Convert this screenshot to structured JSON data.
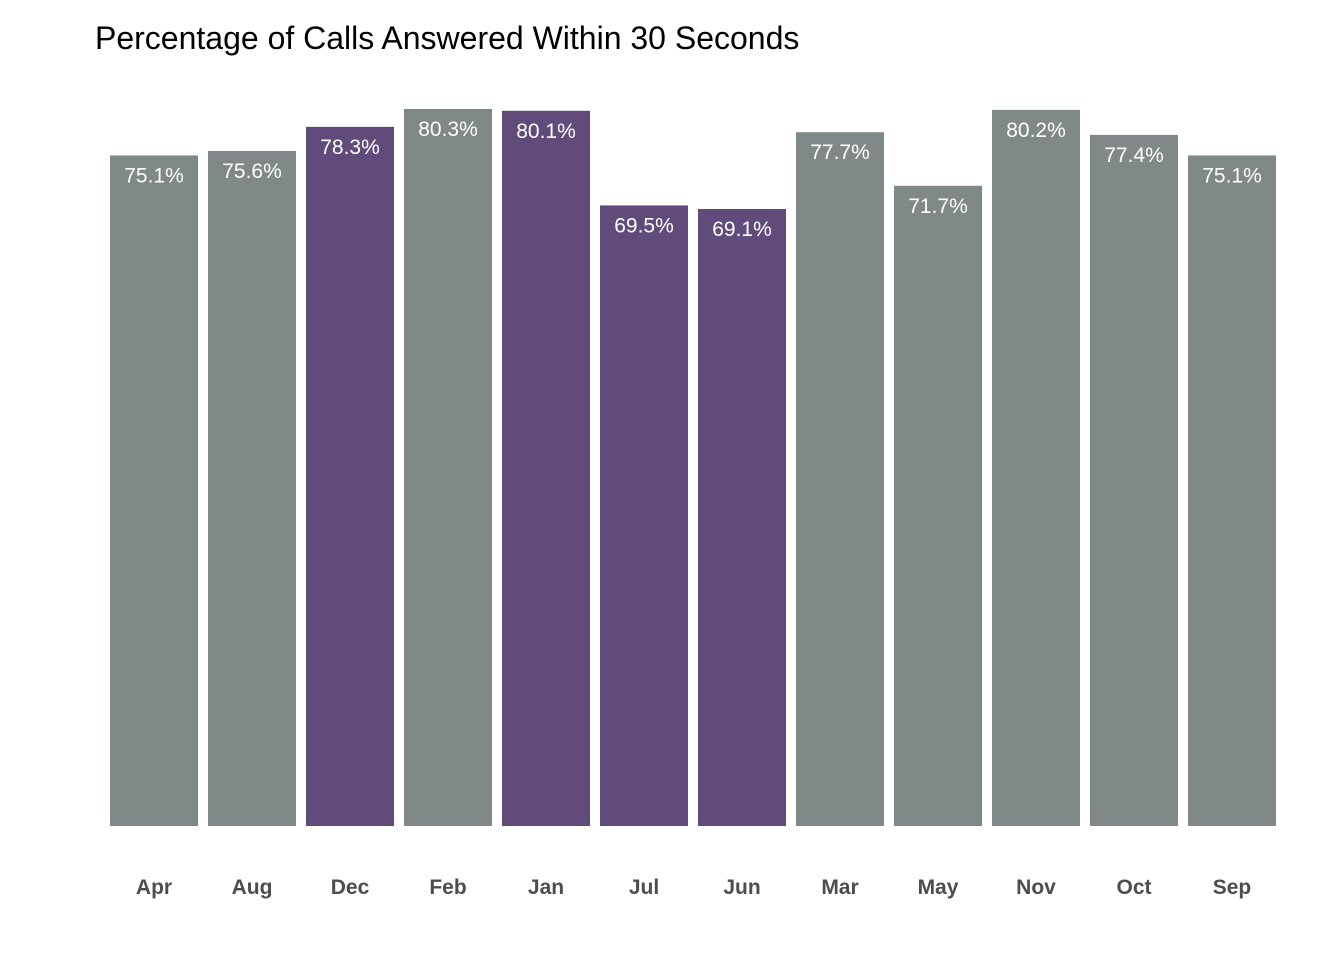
{
  "chart_data": {
    "type": "bar",
    "title": "Percentage of Calls Answered Within 30 Seconds",
    "xlabel": "",
    "ylabel": "",
    "ylim": [
      0,
      80.3
    ],
    "grid": false,
    "legend": "none",
    "categories": [
      "Apr",
      "Aug",
      "Dec",
      "Feb",
      "Jan",
      "Jul",
      "Jun",
      "Mar",
      "May",
      "Nov",
      "Oct",
      "Sep"
    ],
    "values": [
      75.1,
      75.6,
      78.3,
      80.3,
      80.1,
      69.5,
      69.1,
      77.7,
      71.7,
      80.2,
      77.4,
      75.1
    ],
    "labels": [
      "75.1%",
      "75.6%",
      "78.3%",
      "80.3%",
      "80.1%",
      "69.5%",
      "69.1%",
      "77.7%",
      "71.7%",
      "80.2%",
      "77.4%",
      "75.1%"
    ],
    "highlighted": [
      false,
      false,
      true,
      false,
      true,
      true,
      true,
      false,
      false,
      false,
      false,
      false
    ],
    "colors": {
      "default": "#808888",
      "highlight": "#614b7b",
      "label": "#ffffff",
      "tick": "#4d4d4d"
    }
  }
}
